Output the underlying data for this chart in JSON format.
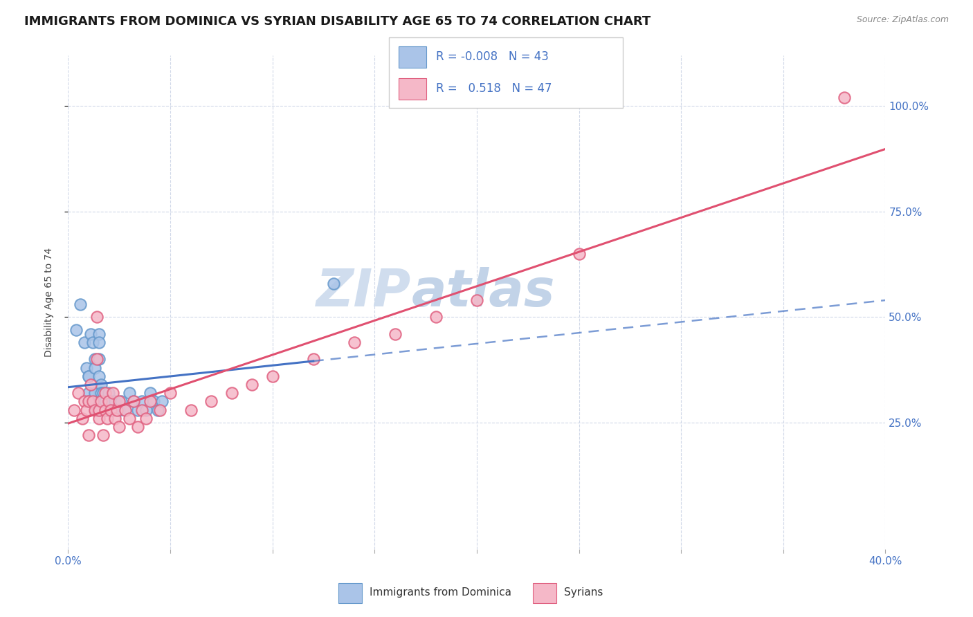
{
  "title": "IMMIGRANTS FROM DOMINICA VS SYRIAN DISABILITY AGE 65 TO 74 CORRELATION CHART",
  "source_text": "Source: ZipAtlas.com",
  "ylabel": "Disability Age 65 to 74",
  "xlim": [
    0.0,
    0.4
  ],
  "ylim": [
    -0.05,
    1.12
  ],
  "plot_ylim": [
    -0.05,
    1.12
  ],
  "xtick_values": [
    0.0,
    0.05,
    0.1,
    0.15,
    0.2,
    0.25,
    0.3,
    0.35,
    0.4
  ],
  "ytick_right_labels": [
    "25.0%",
    "50.0%",
    "75.0%",
    "100.0%"
  ],
  "ytick_right_values": [
    0.25,
    0.5,
    0.75,
    1.0
  ],
  "dominica_color": "#aac4e8",
  "dominica_edge_color": "#6699cc",
  "syrian_color": "#f5b8c8",
  "syrian_edge_color": "#e06080",
  "dominica_R": -0.008,
  "dominica_N": 43,
  "syrian_R": 0.518,
  "syrian_N": 47,
  "dominica_line_color": "#4472c4",
  "syrian_line_color": "#e05070",
  "watermark_color": "#c8d8ec",
  "title_fontsize": 13,
  "axis_label_fontsize": 10,
  "tick_fontsize": 11,
  "legend_text_color": "#4472c4",
  "dominica_scatter_x": [
    0.004,
    0.006,
    0.008,
    0.009,
    0.01,
    0.01,
    0.01,
    0.01,
    0.011,
    0.012,
    0.013,
    0.013,
    0.013,
    0.014,
    0.014,
    0.015,
    0.015,
    0.015,
    0.015,
    0.016,
    0.016,
    0.016,
    0.016,
    0.017,
    0.018,
    0.019,
    0.02,
    0.021,
    0.022,
    0.023,
    0.025,
    0.026,
    0.028,
    0.03,
    0.032,
    0.034,
    0.036,
    0.038,
    0.04,
    0.042,
    0.044,
    0.046,
    0.13
  ],
  "dominica_scatter_y": [
    0.47,
    0.53,
    0.44,
    0.38,
    0.36,
    0.36,
    0.32,
    0.3,
    0.46,
    0.44,
    0.4,
    0.38,
    0.32,
    0.3,
    0.28,
    0.46,
    0.44,
    0.4,
    0.36,
    0.34,
    0.32,
    0.3,
    0.28,
    0.32,
    0.3,
    0.28,
    0.32,
    0.3,
    0.28,
    0.3,
    0.28,
    0.3,
    0.28,
    0.32,
    0.3,
    0.28,
    0.3,
    0.28,
    0.32,
    0.3,
    0.28,
    0.3,
    0.58
  ],
  "syrian_scatter_x": [
    0.003,
    0.005,
    0.007,
    0.008,
    0.009,
    0.01,
    0.01,
    0.011,
    0.012,
    0.013,
    0.014,
    0.014,
    0.015,
    0.015,
    0.016,
    0.017,
    0.018,
    0.018,
    0.019,
    0.02,
    0.021,
    0.022,
    0.023,
    0.024,
    0.025,
    0.025,
    0.028,
    0.03,
    0.032,
    0.034,
    0.036,
    0.038,
    0.04,
    0.045,
    0.05,
    0.06,
    0.07,
    0.08,
    0.09,
    0.1,
    0.12,
    0.14,
    0.16,
    0.18,
    0.2,
    0.25,
    0.38
  ],
  "syrian_scatter_y": [
    0.28,
    0.32,
    0.26,
    0.3,
    0.28,
    0.22,
    0.3,
    0.34,
    0.3,
    0.28,
    0.4,
    0.5,
    0.26,
    0.28,
    0.3,
    0.22,
    0.28,
    0.32,
    0.26,
    0.3,
    0.28,
    0.32,
    0.26,
    0.28,
    0.24,
    0.3,
    0.28,
    0.26,
    0.3,
    0.24,
    0.28,
    0.26,
    0.3,
    0.28,
    0.32,
    0.28,
    0.3,
    0.32,
    0.34,
    0.36,
    0.4,
    0.44,
    0.46,
    0.5,
    0.54,
    0.65,
    1.02
  ]
}
